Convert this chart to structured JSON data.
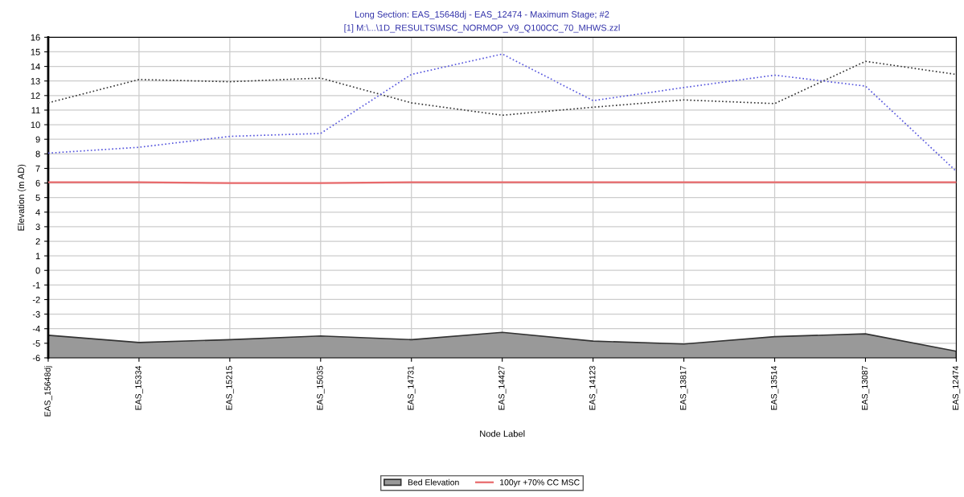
{
  "chart_data": {
    "type": "line",
    "title": "Long Section: EAS_15648dj - EAS_12474 - Maximum Stage; #2",
    "subtitle": "[1] M:\\...\\1D_RESULTS\\MSC_NORMOP_V9_Q100CC_70_MHWS.zzl",
    "xlabel": "Node Label",
    "ylabel": "Elevation (m AD)",
    "categories": [
      "EAS_15648dj",
      "EAS_15334",
      "EAS_15215",
      "EAS_15035",
      "EAS_14731",
      "EAS_14427",
      "EAS_14123",
      "EAS_13817",
      "EAS_13514",
      "EAS_13087",
      "EAS_12474"
    ],
    "ylim": [
      -6,
      16
    ],
    "yticks": [
      -6,
      -5,
      -4,
      -3,
      -2,
      -1,
      0,
      1,
      2,
      3,
      4,
      5,
      6,
      7,
      8,
      9,
      10,
      11,
      12,
      13,
      14,
      15,
      16
    ],
    "grid": true,
    "legend": "bottom",
    "series": [
      {
        "name": "Bed Elevation",
        "type": "area",
        "color": "#999999",
        "values": [
          -4.45,
          -4.95,
          -4.75,
          -4.5,
          -4.75,
          -4.25,
          -4.85,
          -5.05,
          -4.55,
          -4.35,
          -5.55
        ]
      },
      {
        "name": "100yr +70% CC MSC",
        "color": "#e8696b",
        "line_style": "solid",
        "values": [
          6.05,
          6.05,
          6.0,
          6.0,
          6.05,
          6.05,
          6.05,
          6.05,
          6.05,
          6.05,
          6.05
        ]
      },
      {
        "color": "#333333",
        "line_style": "dotted",
        "values": [
          11.5,
          13.1,
          12.95,
          13.2,
          11.5,
          10.65,
          11.2,
          11.7,
          11.45,
          14.35,
          13.45
        ]
      },
      {
        "color": "#5555dd",
        "line_style": "dotted",
        "values": [
          8.05,
          8.45,
          9.2,
          9.4,
          13.45,
          14.85,
          11.65,
          12.55,
          13.4,
          12.65,
          6.8
        ]
      }
    ]
  }
}
